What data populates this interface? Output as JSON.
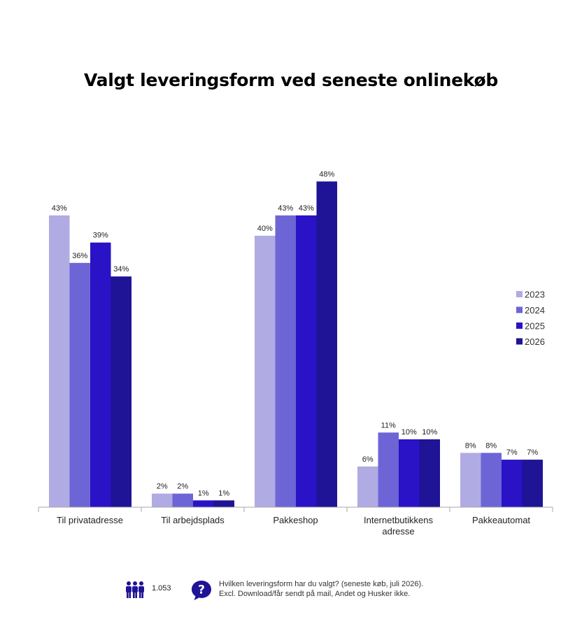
{
  "chart_data": {
    "type": "bar",
    "title": "Valgt leveringsform ved seneste onlinekøb",
    "categories": [
      "Til privatadresse",
      "Til arbejdsplads",
      "Pakkeshop",
      "Internetbutikkens adresse",
      "Pakkeautomat"
    ],
    "series": [
      {
        "name": "2023",
        "color": "#b0abe3",
        "values": [
          43,
          2,
          40,
          6,
          8
        ],
        "labels": [
          "43%",
          "2%",
          "40%",
          "6%",
          "8%"
        ]
      },
      {
        "name": "2024",
        "color": "#6d65d6",
        "values": [
          36,
          2,
          43,
          11,
          8
        ],
        "labels": [
          "36%",
          "2%",
          "43%",
          "11%",
          "8%"
        ]
      },
      {
        "name": "2025",
        "color": "#2a12c6",
        "values": [
          39,
          1,
          43,
          10,
          7
        ],
        "labels": [
          "39%",
          "1%",
          "43%",
          "10%",
          "7%"
        ]
      },
      {
        "name": "2026",
        "color": "#1f1396",
        "values": [
          34,
          1,
          48,
          10,
          7
        ],
        "labels": [
          "34%",
          "1%",
          "48%",
          "10%",
          "7%"
        ]
      }
    ],
    "ylim": [
      0,
      50
    ],
    "grid": false,
    "legend_position": "right"
  },
  "footer": {
    "sample_icon": "people-icon",
    "sample_size": "1.053",
    "question_icon": "question-bubble-icon",
    "note_line1": "Hvilken leveringsform har du valgt? (seneste køb, juli 2026).",
    "note_line2": "Excl. Download/får sendt på mail, Andet og Husker ikke.",
    "icon_color": "#1f1396"
  }
}
